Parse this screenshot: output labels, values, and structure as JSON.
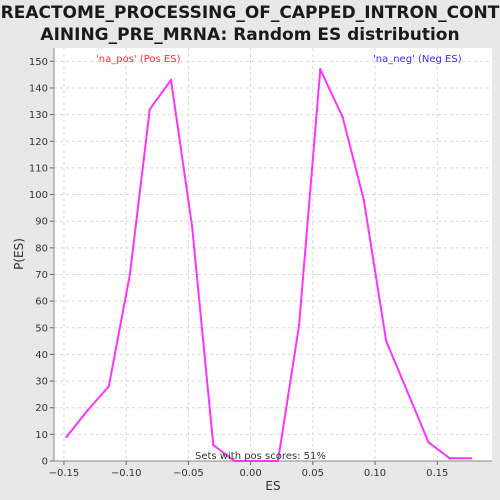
{
  "chart_data": {
    "type": "line",
    "title_line1": "REACTOME_PROCESSING_OF_CAPPED_INTRON_CONT",
    "title_line2": "AINING_PRE_MRNA: Random ES distribution",
    "xlabel": "ES",
    "ylabel": "P(ES)",
    "xlim": [
      -0.158,
      0.194
    ],
    "ylim": [
      0,
      155
    ],
    "x_ticks": [
      -0.15,
      -0.1,
      -0.05,
      0.0,
      0.05,
      0.1,
      0.15
    ],
    "x_tick_labels": [
      "−0.15",
      "−0.10",
      "−0.05",
      "0.00",
      "0.05",
      "0.10",
      "0.15"
    ],
    "y_ticks": [
      0,
      10,
      20,
      30,
      40,
      50,
      60,
      70,
      80,
      90,
      100,
      110,
      120,
      130,
      140,
      150
    ],
    "y_tick_labels": [
      "0",
      "10",
      "20",
      "30",
      "40",
      "50",
      "60",
      "70",
      "80",
      "90",
      "100",
      "110",
      "120",
      "130",
      "140",
      "150"
    ],
    "grid": true,
    "series": [
      {
        "color": "#ff33ff",
        "x": [
          -0.148,
          -0.131,
          -0.114,
          -0.097,
          -0.081,
          -0.064,
          -0.047,
          -0.03,
          -0.013,
          0.004,
          0.022,
          0.039,
          0.056,
          0.074,
          0.091,
          0.109,
          0.126,
          0.143,
          0.16,
          0.177
        ],
        "y": [
          9,
          19,
          28,
          70,
          132,
          143,
          88,
          6,
          0,
          0,
          0,
          51,
          147,
          129,
          98,
          45,
          26,
          7,
          1,
          1
        ]
      }
    ],
    "legend": [
      {
        "label": "'na_pos' (Pos ES)",
        "color": "#ff3333",
        "placement": "top-left"
      },
      {
        "label": "'na_neg' (Neg ES)",
        "color": "#3333ff",
        "placement": "top-right"
      }
    ],
    "annotation": "Sets with pos scores: 51%"
  }
}
